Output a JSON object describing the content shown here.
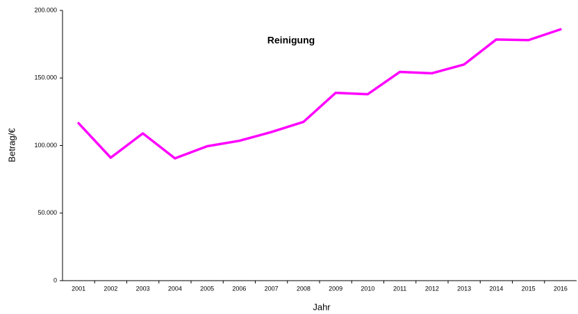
{
  "chart_data": {
    "type": "line",
    "title": "Reinigung",
    "x_label": "Jahr",
    "y_label": "Betrag/€",
    "categories": [
      "2001",
      "2002",
      "2003",
      "2004",
      "2005",
      "2006",
      "2007",
      "2008",
      "2009",
      "2010",
      "2011",
      "2012",
      "2013",
      "2014",
      "2015",
      "2016"
    ],
    "series": [
      {
        "name": "Reinigung",
        "color": "#ff00ff",
        "values": [
          116500,
          91000,
          109000,
          90500,
          99500,
          103500,
          110000,
          117500,
          139000,
          138000,
          154500,
          153500,
          160000,
          178500,
          178000,
          186000
        ]
      }
    ],
    "ylim": [
      0,
      200000
    ],
    "yticks": [
      0,
      {
        "value": 50000,
        "label": "50.000"
      },
      {
        "value": 100000,
        "label": "100.000"
      },
      {
        "value": 150000,
        "label": "150.000"
      },
      {
        "value": 200000,
        "label": "200.000"
      }
    ],
    "grid": false
  }
}
